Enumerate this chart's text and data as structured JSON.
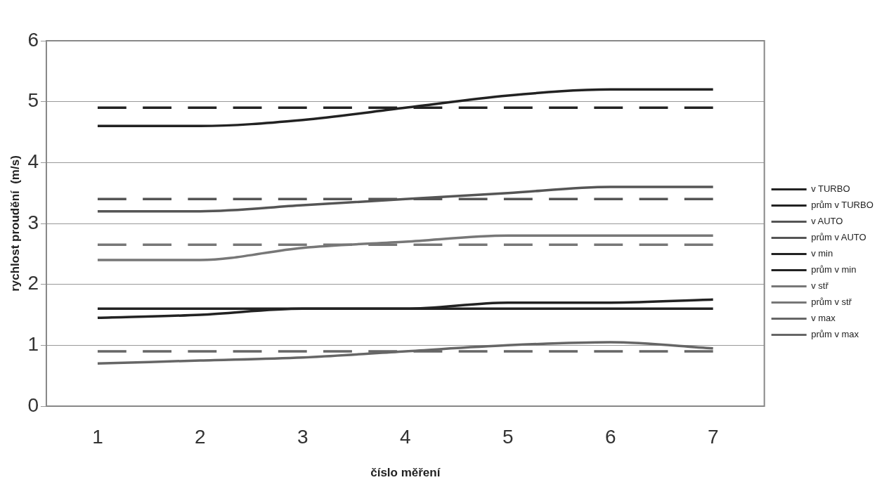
{
  "chart_data": {
    "type": "line",
    "xlabel": "číslo měření",
    "ylabel": "rychlost proudění  (m/s)",
    "categories": [
      "1",
      "2",
      "3",
      "4",
      "5",
      "6",
      "7"
    ],
    "ylim": [
      0,
      6
    ],
    "yticks": [
      0,
      1,
      2,
      3,
      4,
      5,
      6
    ],
    "grid": "y",
    "legend": "right",
    "marker": "none",
    "series": [
      {
        "name": "v TURBO",
        "color": "#222222",
        "line_style": "solid",
        "values": [
          4.6,
          4.6,
          4.7,
          4.9,
          5.1,
          5.2,
          5.2
        ]
      },
      {
        "name": "prům v TURBO",
        "color": "#222222",
        "line_style": "dashed",
        "values": [
          4.9,
          4.9,
          4.9,
          4.9,
          4.9,
          4.9,
          4.9
        ]
      },
      {
        "name": "v AUTO",
        "color": "#555555",
        "line_style": "solid",
        "values": [
          3.2,
          3.2,
          3.3,
          3.4,
          3.5,
          3.6,
          3.6
        ]
      },
      {
        "name": "prům v AUTO",
        "color": "#555555",
        "line_style": "dashed",
        "values": [
          3.4,
          3.4,
          3.4,
          3.4,
          3.4,
          3.4,
          3.4
        ]
      },
      {
        "name": "v min",
        "color": "#222222",
        "line_style": "solid",
        "values": [
          1.45,
          1.5,
          1.6,
          1.6,
          1.7,
          1.7,
          1.75
        ]
      },
      {
        "name": "prům v min",
        "color": "#222222",
        "line_style": "solid",
        "values": [
          1.6,
          1.6,
          1.6,
          1.6,
          1.6,
          1.6,
          1.6
        ]
      },
      {
        "name": "v stř",
        "color": "#777777",
        "line_style": "solid",
        "values": [
          2.4,
          2.4,
          2.6,
          2.7,
          2.8,
          2.8,
          2.8
        ]
      },
      {
        "name": "prům v stř",
        "color": "#777777",
        "line_style": "dashed",
        "values": [
          2.65,
          2.65,
          2.65,
          2.65,
          2.65,
          2.65,
          2.65
        ]
      },
      {
        "name": "v max",
        "color": "#666666",
        "line_style": "solid",
        "values": [
          0.7,
          0.75,
          0.8,
          0.9,
          1.0,
          1.05,
          0.95
        ]
      },
      {
        "name": "prům v max",
        "color": "#666666",
        "line_style": "dashed",
        "values": [
          0.9,
          0.9,
          0.9,
          0.9,
          0.9,
          0.9,
          0.9
        ]
      }
    ]
  }
}
